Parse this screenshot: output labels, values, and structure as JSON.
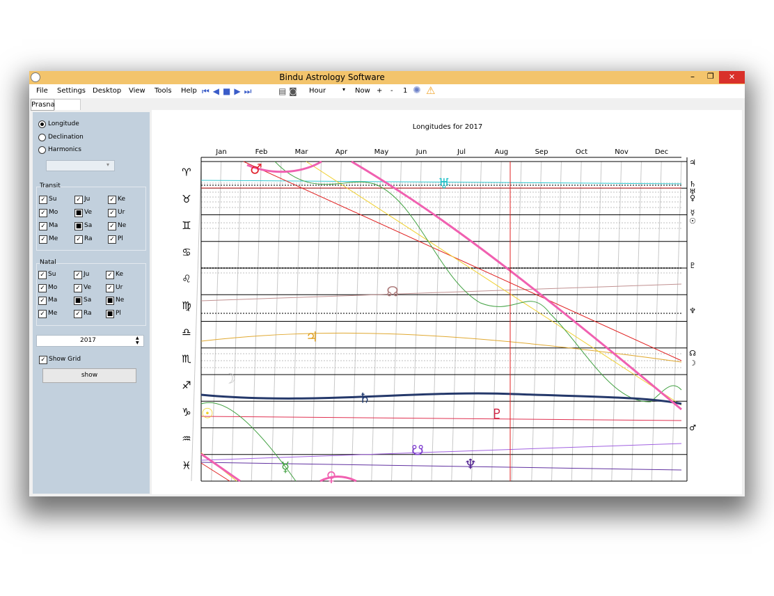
{
  "window": {
    "title": "Bindu Astrology Software",
    "controls": [
      "–",
      "❐",
      "✕"
    ]
  },
  "menu": [
    "File",
    "Settings",
    "Desktop",
    "View",
    "Tools",
    "Help"
  ],
  "toolbar": {
    "interval": "Hour",
    "now": "Now",
    "plus": "+",
    "minus": "-",
    "step": "1"
  },
  "tab": "Prasna",
  "modes": [
    "Longitude",
    "Declination",
    "Harmonics"
  ],
  "transit": {
    "label": "Transit",
    "items": [
      {
        "label": "Su",
        "state": "checked"
      },
      {
        "label": "Ju",
        "state": "checked"
      },
      {
        "label": "Ke",
        "state": "checked"
      },
      {
        "label": "Mo",
        "state": "checked"
      },
      {
        "label": "Ve",
        "state": "partial"
      },
      {
        "label": "Ur",
        "state": "checked"
      },
      {
        "label": "Ma",
        "state": "checked"
      },
      {
        "label": "Sa",
        "state": "partial"
      },
      {
        "label": "Ne",
        "state": "checked"
      },
      {
        "label": "Me",
        "state": "checked"
      },
      {
        "label": "Ra",
        "state": "checked"
      },
      {
        "label": "Pl",
        "state": "checked"
      }
    ]
  },
  "natal": {
    "label": "Natal",
    "items": [
      {
        "label": "Su",
        "state": "checked"
      },
      {
        "label": "Ju",
        "state": "checked"
      },
      {
        "label": "Ke",
        "state": "checked"
      },
      {
        "label": "Mo",
        "state": "checked"
      },
      {
        "label": "Ve",
        "state": "checked"
      },
      {
        "label": "Ur",
        "state": "checked"
      },
      {
        "label": "Ma",
        "state": "checked"
      },
      {
        "label": "Sa",
        "state": "partial"
      },
      {
        "label": "Ne",
        "state": "partial"
      },
      {
        "label": "Me",
        "state": "checked"
      },
      {
        "label": "Ra",
        "state": "checked"
      },
      {
        "label": "Pl",
        "state": "partial"
      }
    ]
  },
  "year": "2017",
  "show_grid": {
    "label": "Show Grid",
    "state": "checked"
  },
  "show_button": "show",
  "chart": {
    "title": "Longitudes for 2017",
    "months": [
      "Jan",
      "Feb",
      "Mar",
      "Apr",
      "May",
      "Jun",
      "Jul",
      "Aug",
      "Sep",
      "Oct",
      "Nov",
      "Dec"
    ],
    "signs": [
      "♈",
      "♉",
      "♊",
      "♋",
      "♌",
      "♍",
      "♎",
      "♏",
      "♐",
      "♑",
      "♒",
      "♓"
    ],
    "planets": [
      {
        "glyph": "♂",
        "color": "#e0202a"
      },
      {
        "glyph": "♅",
        "color": "#20c0c8"
      },
      {
        "glyph": "☊",
        "color": "#b08080"
      },
      {
        "glyph": "♃",
        "color": "#e0a020"
      },
      {
        "glyph": "☽",
        "color": "#c0c0c0"
      },
      {
        "glyph": "♄",
        "color": "#203a70"
      },
      {
        "glyph": "☉",
        "color": "#f0d020"
      },
      {
        "glyph": "♇",
        "color": "#d02040"
      },
      {
        "glyph": "☋",
        "color": "#8040d0"
      },
      {
        "glyph": "♆",
        "color": "#502090"
      },
      {
        "glyph": "☿",
        "color": "#40a040"
      },
      {
        "glyph": "♀",
        "color": "#f060b0"
      }
    ],
    "right_glyphs": [
      "♃",
      "♄",
      "♅",
      "♀",
      "☿",
      "☉",
      "♇",
      "♆",
      "☊",
      "☽",
      "♂"
    ]
  }
}
